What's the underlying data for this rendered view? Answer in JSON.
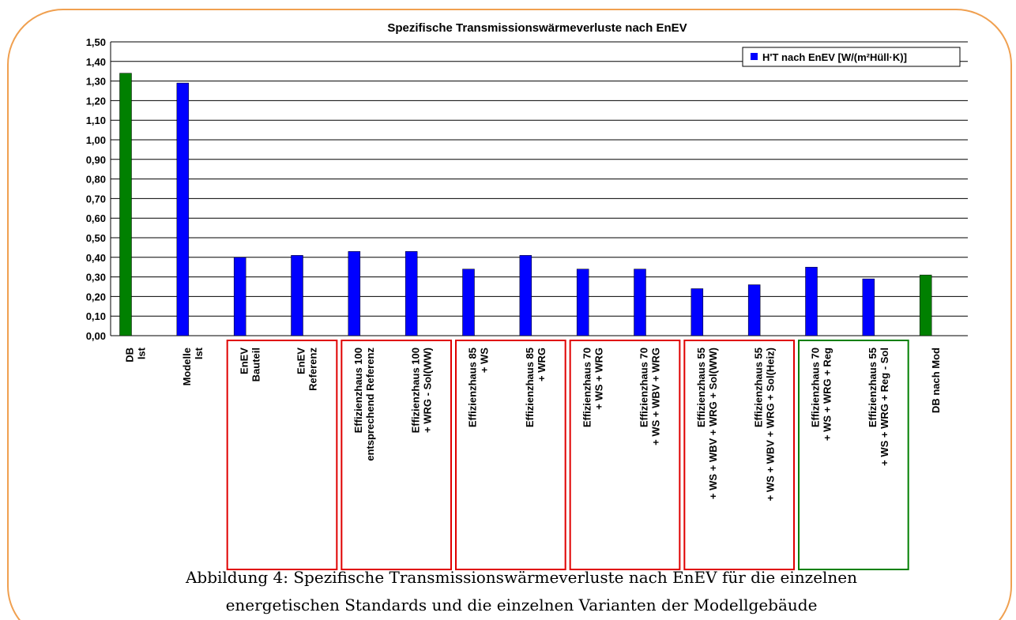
{
  "chart_data": {
    "type": "bar",
    "title": "Spezifische Transmissionswärmeverluste nach EnEV",
    "categories": [
      "DB\nIst",
      "Modelle\nIst",
      "EnEV\nBauteil",
      "EnEV\nReferenz",
      "Effizienzhaus 100\nentsprechend Referenz",
      "Effizienzhaus 100\n+ WRG - Sol(WW)",
      "Effizienzhaus 85\n+ WS",
      "Effizienzhaus 85\n+ WRG",
      "Effizienzhaus 70\n+ WS + WRG",
      "Effizienzhaus 70\n+ WS + WBV + WRG",
      "Effizienzhaus 55\n+ WS + WBV + WRG + Sol(WW)",
      "Effizienzhaus 55\n+ WS + WBV + WRG + Sol(Heiz)",
      "Effizienzhaus 70\n+ WS + WRG + Reg",
      "Effizienzhaus 55\n+ WS + WRG + Reg - Sol",
      "DB nach Mod"
    ],
    "series": [
      {
        "name": "H'T nach EnEV [W/(m²Hüll·K)]",
        "color": "#0000ff",
        "values": [
          1.34,
          1.29,
          0.4,
          0.41,
          0.43,
          0.43,
          0.34,
          0.41,
          0.34,
          0.34,
          0.24,
          0.26,
          0.35,
          0.29,
          0.31
        ],
        "colors": [
          "#008000",
          "#0000ff",
          "#0000ff",
          "#0000ff",
          "#0000ff",
          "#0000ff",
          "#0000ff",
          "#0000ff",
          "#0000ff",
          "#0000ff",
          "#0000ff",
          "#0000ff",
          "#0000ff",
          "#0000ff",
          "#008000"
        ]
      }
    ],
    "ylim": [
      0,
      1.5
    ],
    "yticks": [
      {
        "value": 0,
        "label": "0,00"
      },
      {
        "value": 0.1,
        "label": "0,10"
      },
      {
        "value": 0.2,
        "label": "0,20"
      },
      {
        "value": 0.3,
        "label": "0,30"
      },
      {
        "value": 0.4,
        "label": "0,40"
      },
      {
        "value": 0.5,
        "label": "0,50"
      },
      {
        "value": 0.6,
        "label": "0,60"
      },
      {
        "value": 0.7,
        "label": "0,70"
      },
      {
        "value": 0.8,
        "label": "0,80"
      },
      {
        "value": 0.9,
        "label": "0,90"
      },
      {
        "value": 1.0,
        "label": "1,00"
      },
      {
        "value": 1.1,
        "label": "1,10"
      },
      {
        "value": 1.2,
        "label": "1,20"
      },
      {
        "value": 1.3,
        "label": "1,30"
      },
      {
        "value": 1.4,
        "label": "1,40"
      },
      {
        "value": 1.5,
        "label": "1,50"
      }
    ],
    "grid": true,
    "legend": "top-right"
  },
  "caption": [
    "Abbildung 4: Spezifische Transmissionswärmeverluste nach EnEV für die einzelnen",
    "energetischen Standards und die einzelnen Varianten der Modellgebäude"
  ]
}
